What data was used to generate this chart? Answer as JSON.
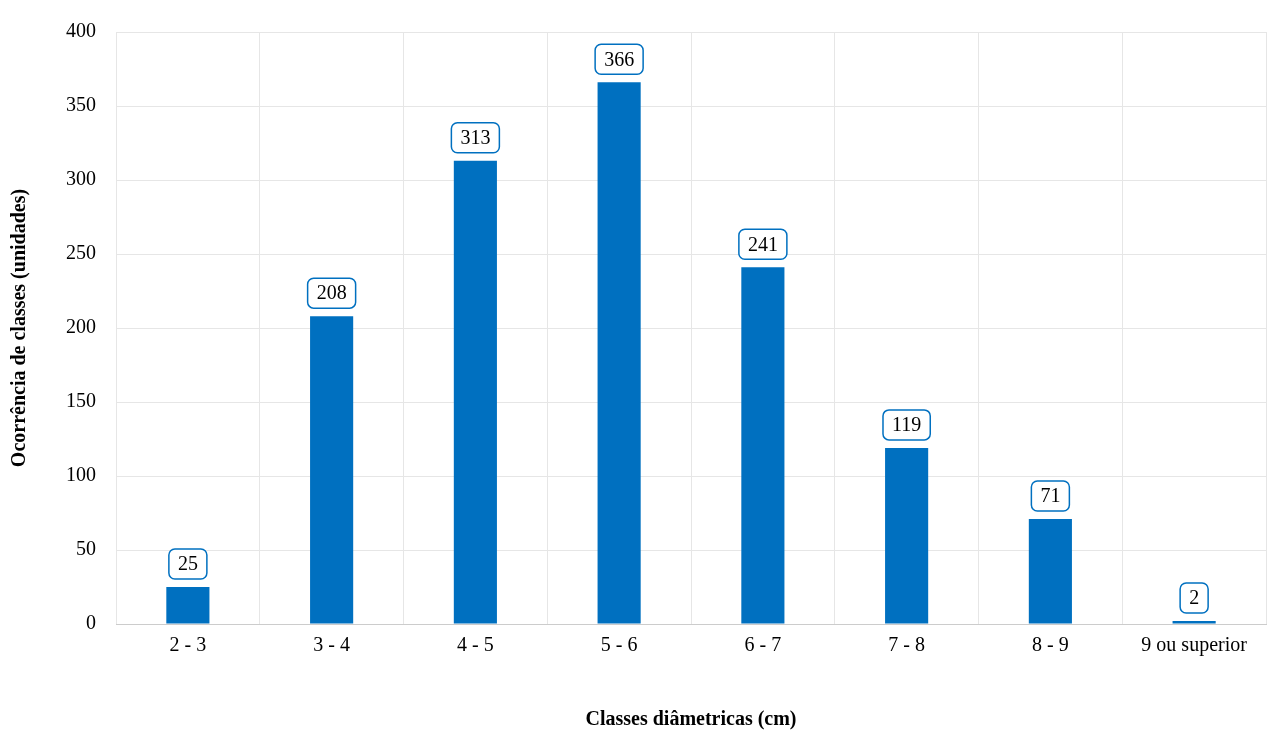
{
  "chart_data": {
    "type": "bar",
    "xlabel": "Classes diâmetricas (cm)",
    "ylabel": "Ocorrência de classes (unidades)",
    "categories": [
      "2 - 3",
      "3 - 4",
      "4 - 5",
      "5 - 6",
      "6 - 7",
      "7 - 8",
      "8 - 9",
      "9 ou superior"
    ],
    "values": [
      25,
      208,
      313,
      366,
      241,
      119,
      71,
      2
    ],
    "color": "#0070c0",
    "ylim": [
      0,
      400
    ],
    "yticks": [
      0,
      50,
      100,
      150,
      200,
      250,
      300,
      350,
      400
    ],
    "grid": true,
    "data_labels": true,
    "legend": false
  }
}
